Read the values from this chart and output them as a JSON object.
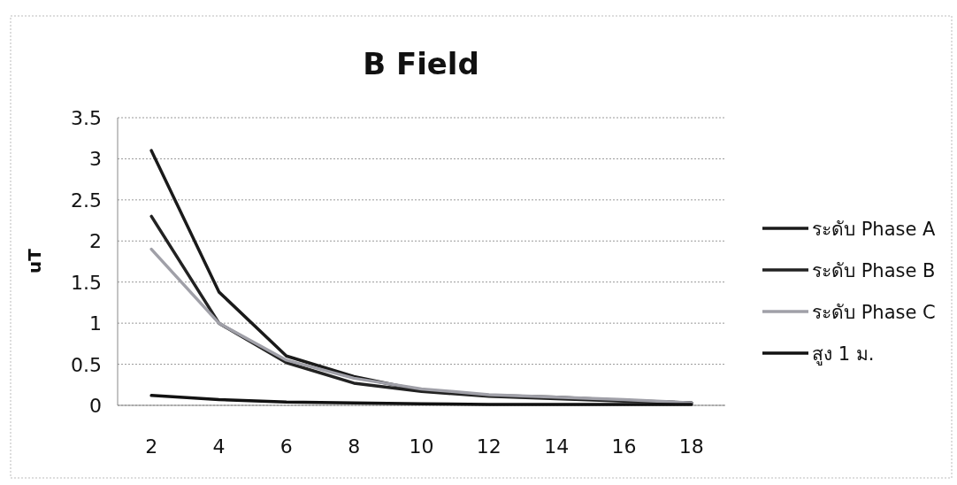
{
  "chart_data": {
    "type": "line",
    "title": "B Field",
    "ylabel": "uT",
    "x": [
      2,
      4,
      6,
      8,
      10,
      12,
      14,
      16,
      18
    ],
    "series": [
      {
        "name": "ระดับ Phase A",
        "color": "#1a1a1a",
        "values": [
          3.1,
          1.38,
          0.6,
          0.35,
          0.18,
          0.12,
          0.1,
          0.06,
          0.03
        ]
      },
      {
        "name": "ระดับ Phase B",
        "color": "#222222",
        "values": [
          2.3,
          1.0,
          0.52,
          0.27,
          0.17,
          0.11,
          0.08,
          0.05,
          0.03
        ]
      },
      {
        "name": "ระดับ Phase C",
        "color": "#a0a0a8",
        "values": [
          1.9,
          1.0,
          0.55,
          0.33,
          0.2,
          0.13,
          0.1,
          0.07,
          0.03
        ]
      },
      {
        "name": "สูง 1 ม.",
        "color": "#111111",
        "values": [
          0.12,
          0.07,
          0.04,
          0.03,
          0.02,
          0.01,
          0.01,
          0.01,
          0.01
        ]
      }
    ],
    "xlim": [
      1,
      19
    ],
    "xticks": [
      2,
      4,
      6,
      8,
      10,
      12,
      14,
      16,
      18
    ],
    "ylim": [
      0,
      3.5
    ],
    "yticks": [
      0,
      0.5,
      1,
      1.5,
      2,
      2.5,
      3,
      3.5
    ],
    "grid": "y",
    "legend": "right",
    "marker": "none",
    "line_style": "solid"
  }
}
